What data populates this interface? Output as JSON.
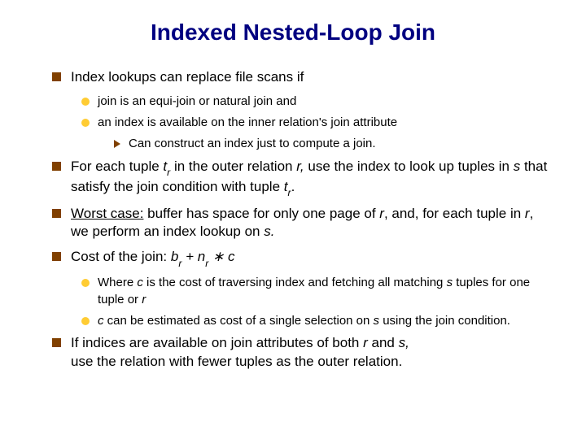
{
  "title": "Indexed Nested-Loop Join",
  "colors": {
    "title": "#000080",
    "square_bullet": "#804000",
    "circle_bullet": "#ffcc33",
    "triangle_bullet": "#804000",
    "background": "#ffffff",
    "text": "#000000"
  },
  "fonts": {
    "title_size": 28,
    "l1_size": 17,
    "l2_size": 15,
    "l3_size": 15,
    "family": "Arial"
  },
  "bullets": [
    {
      "level": 1,
      "text": "Index lookups can replace file scans if",
      "children": [
        {
          "level": 2,
          "text": "join is an equi-join or natural join and"
        },
        {
          "level": 2,
          "text": "an index is available on the inner relation's join attribute",
          "children": [
            {
              "level": 3,
              "text": "Can construct an index just to compute a join."
            }
          ]
        }
      ]
    },
    {
      "level": 1,
      "html": "For each tuple <span class='it'>t<span class='sub'>r</span></span> in the outer relation <span class='it'>r,</span> use the index to look up tuples in <span class='it'>s</span> that satisfy the join condition with tuple <span class='it'>t<span class='sub'>r</span></span>."
    },
    {
      "level": 1,
      "html": "<span class='u'>Worst case:</span>  buffer has space for only one page of <span class='it'>r</span>, and, for each tuple in <span class='it'>r</span>, we perform an index lookup on <span class='it'>s.</span>"
    },
    {
      "level": 1,
      "html": "Cost of the join:  <span class='it'>b<span class='sub'>r</span> + n<span class='sub'>r</span> ∗ c</span>",
      "children": [
        {
          "level": 2,
          "html": "Where <span class='it'>c</span> is the cost of traversing index and fetching all matching <span class='it'>s</span> tuples for one tuple or <span class='it'>r</span>"
        },
        {
          "level": 2,
          "html": "<span class='it'>c</span> can be estimated as cost of a single selection on <span class='it'>s</span> using the join condition."
        }
      ]
    },
    {
      "level": 1,
      "html": "If indices are available on join attributes of both <span class='it'>r</span> and <span class='it'>s,</span><br>use the relation with fewer tuples as the outer relation."
    }
  ]
}
